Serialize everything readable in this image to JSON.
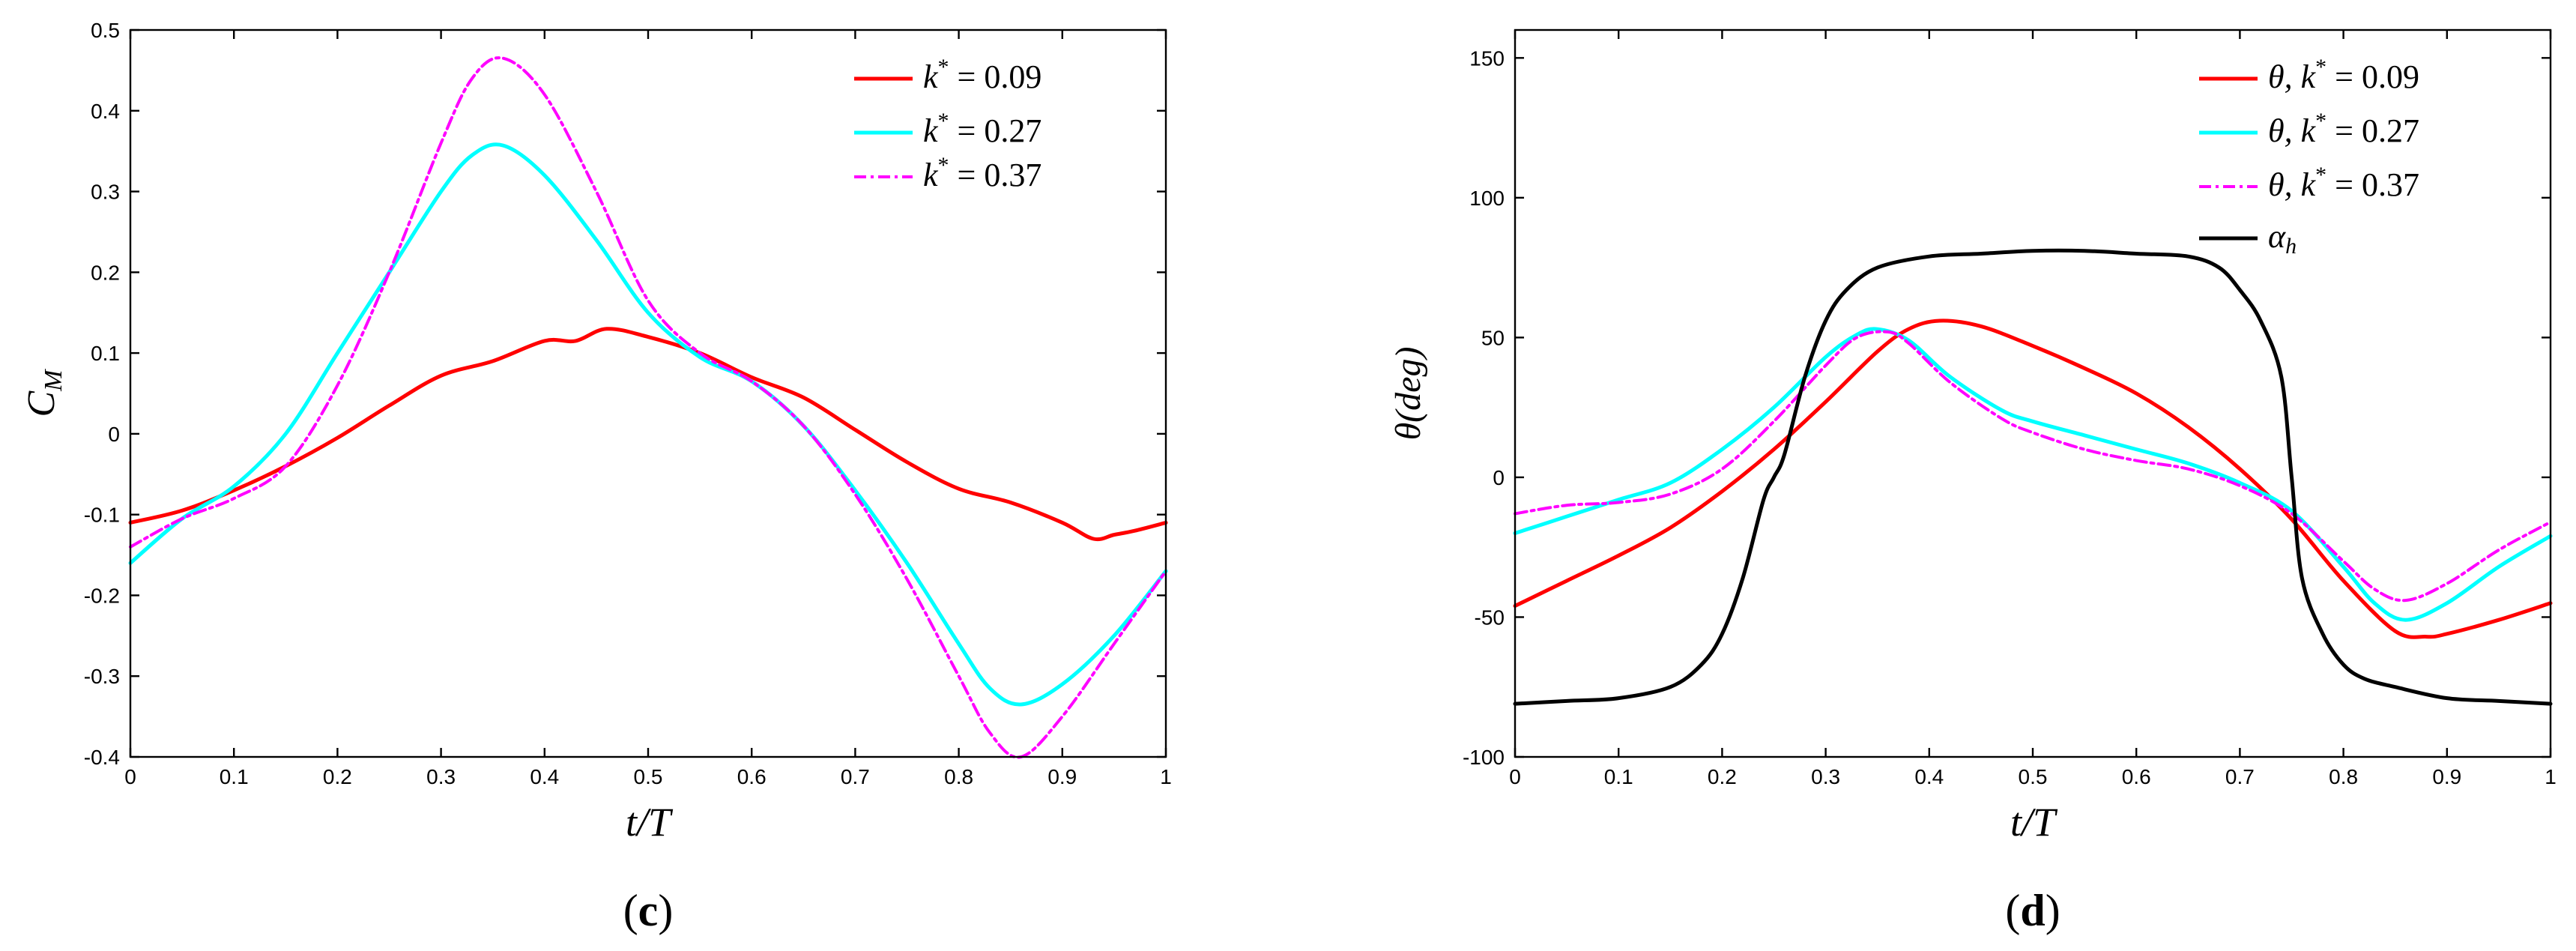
{
  "colors": {
    "red": "#ff0000",
    "cyan": "#00ffff",
    "magenta": "#ff00ff",
    "black": "#000000"
  },
  "chart_data": [
    {
      "type": "line",
      "panel": "c",
      "panel_label": {
        "open": "(",
        "letter": "c",
        "close": ")"
      },
      "xlabel": {
        "main": "t/T"
      },
      "ylabel": {
        "main": "C",
        "sub": "M"
      },
      "xlim": [
        0,
        1
      ],
      "ylim": [
        -0.4,
        0.5
      ],
      "xticks": [
        0,
        0.1,
        0.2,
        0.3,
        0.4,
        0.5,
        0.6,
        0.7,
        0.8,
        0.9,
        1
      ],
      "xtick_labels": [
        "0",
        "0.1",
        "0.2",
        "0.3",
        "0.4",
        "0.5",
        "0.6",
        "0.7",
        "0.8",
        "0.9",
        "1"
      ],
      "yticks": [
        -0.4,
        -0.3,
        -0.2,
        -0.1,
        0,
        0.1,
        0.2,
        0.3,
        0.4,
        0.5
      ],
      "ytick_labels": [
        "-0.4",
        "-0.3",
        "-0.2",
        "-0.1",
        "0",
        "0.1",
        "0.2",
        "0.3",
        "0.4",
        "0.5"
      ],
      "legend_position": "top-right",
      "series": [
        {
          "name": "k* = 0.09",
          "legend": {
            "base": "k",
            "sup": "*",
            "rest": " = 0.09"
          },
          "color": "#ff0000",
          "dash": "solid",
          "x": [
            0,
            0.05,
            0.1,
            0.15,
            0.2,
            0.25,
            0.3,
            0.35,
            0.4,
            0.43,
            0.46,
            0.5,
            0.55,
            0.6,
            0.65,
            0.7,
            0.75,
            0.8,
            0.85,
            0.9,
            0.93,
            0.95,
            0.97,
            1
          ],
          "y": [
            -0.11,
            -0.095,
            -0.07,
            -0.04,
            -0.005,
            0.035,
            0.072,
            0.09,
            0.115,
            0.115,
            0.13,
            0.12,
            0.1,
            0.07,
            0.045,
            0.005,
            -0.035,
            -0.068,
            -0.085,
            -0.11,
            -0.13,
            -0.125,
            -0.12,
            -0.11
          ]
        },
        {
          "name": "k* = 0.27",
          "legend": {
            "base": "k",
            "sup": "*",
            "rest": " = 0.27"
          },
          "color": "#00ffff",
          "dash": "solid",
          "x": [
            0,
            0.05,
            0.1,
            0.15,
            0.2,
            0.25,
            0.3,
            0.33,
            0.36,
            0.4,
            0.45,
            0.5,
            0.55,
            0.6,
            0.65,
            0.7,
            0.75,
            0.8,
            0.83,
            0.86,
            0.9,
            0.95,
            1
          ],
          "y": [
            -0.16,
            -0.105,
            -0.065,
            0.0,
            0.1,
            0.2,
            0.3,
            0.345,
            0.357,
            0.32,
            0.24,
            0.15,
            0.095,
            0.065,
            0.01,
            -0.07,
            -0.16,
            -0.26,
            -0.315,
            -0.335,
            -0.31,
            -0.25,
            -0.17
          ]
        },
        {
          "name": "k* = 0.37",
          "legend": {
            "base": "k",
            "sup": "*",
            "rest": " = 0.37"
          },
          "color": "#ff00ff",
          "dash": "dashdot",
          "x": [
            0,
            0.05,
            0.1,
            0.15,
            0.2,
            0.25,
            0.3,
            0.33,
            0.36,
            0.4,
            0.45,
            0.5,
            0.55,
            0.6,
            0.65,
            0.7,
            0.75,
            0.8,
            0.83,
            0.86,
            0.9,
            0.95,
            1
          ],
          "y": [
            -0.14,
            -0.105,
            -0.08,
            -0.04,
            0.06,
            0.2,
            0.36,
            0.44,
            0.465,
            0.42,
            0.3,
            0.165,
            0.1,
            0.065,
            0.01,
            -0.075,
            -0.18,
            -0.3,
            -0.37,
            -0.4,
            -0.35,
            -0.26,
            -0.17
          ]
        }
      ]
    },
    {
      "type": "line",
      "panel": "d",
      "panel_label": {
        "open": "(",
        "letter": "d",
        "close": ")"
      },
      "xlabel": {
        "main": "t/T"
      },
      "ylabel": {
        "main": "θ(deg)"
      },
      "xlim": [
        0,
        1
      ],
      "ylim": [
        -100,
        160
      ],
      "xticks": [
        0,
        0.1,
        0.2,
        0.3,
        0.4,
        0.5,
        0.6,
        0.7,
        0.8,
        0.9,
        1
      ],
      "xtick_labels": [
        "0",
        "0.1",
        "0.2",
        "0.3",
        "0.4",
        "0.5",
        "0.6",
        "0.7",
        "0.8",
        "0.9",
        "1"
      ],
      "yticks": [
        -100,
        -50,
        0,
        50,
        100,
        150
      ],
      "ytick_labels": [
        "-100",
        "-50",
        "0",
        "50",
        "100",
        "150"
      ],
      "legend_position": "top-right",
      "series": [
        {
          "name": "θ, k* = 0.09",
          "legend": {
            "base": "θ, k",
            "sup": "*",
            "rest": " = 0.09"
          },
          "color": "#ff0000",
          "dash": "solid",
          "x": [
            0,
            0.05,
            0.1,
            0.15,
            0.2,
            0.25,
            0.3,
            0.35,
            0.38,
            0.41,
            0.45,
            0.5,
            0.55,
            0.6,
            0.65,
            0.7,
            0.75,
            0.8,
            0.85,
            0.88,
            0.9,
            0.95,
            1
          ],
          "y": [
            -46,
            -37,
            -28,
            -18,
            -5,
            10,
            27,
            45,
            53,
            56,
            54,
            47,
            39,
            30,
            18,
            3,
            -15,
            -37,
            -55,
            -57,
            -56,
            -51,
            -45
          ]
        },
        {
          "name": "θ, k* = 0.27",
          "legend": {
            "base": "θ, k",
            "sup": "*",
            "rest": " = 0.27"
          },
          "color": "#00ffff",
          "dash": "solid",
          "x": [
            0,
            0.05,
            0.1,
            0.15,
            0.2,
            0.25,
            0.3,
            0.33,
            0.35,
            0.38,
            0.42,
            0.47,
            0.5,
            0.55,
            0.6,
            0.65,
            0.7,
            0.75,
            0.8,
            0.83,
            0.86,
            0.9,
            0.95,
            1
          ],
          "y": [
            -20,
            -14,
            -8,
            -2,
            10,
            25,
            43,
            51,
            53,
            49,
            36,
            24,
            20,
            15,
            10,
            5,
            -2,
            -12,
            -32,
            -45,
            -51,
            -45,
            -32,
            -21
          ]
        },
        {
          "name": "θ, k* = 0.37",
          "legend": {
            "base": "θ, k",
            "sup": "*",
            "rest": " = 0.37"
          },
          "color": "#ff00ff",
          "dash": "dashdot",
          "x": [
            0,
            0.05,
            0.1,
            0.15,
            0.2,
            0.25,
            0.3,
            0.33,
            0.36,
            0.38,
            0.42,
            0.47,
            0.5,
            0.55,
            0.6,
            0.65,
            0.7,
            0.75,
            0.8,
            0.83,
            0.86,
            0.9,
            0.95,
            1
          ],
          "y": [
            -13,
            -10,
            -9,
            -6,
            3,
            20,
            40,
            50,
            52,
            48,
            34,
            21,
            16,
            10,
            6,
            3,
            -3,
            -13,
            -30,
            -40,
            -44,
            -38,
            -26,
            -16
          ]
        },
        {
          "name": "α_h",
          "legend": {
            "base": "α",
            "sub": "h",
            "rest": ""
          },
          "color": "#000000",
          "dash": "solid",
          "x": [
            0,
            0.05,
            0.1,
            0.15,
            0.18,
            0.2,
            0.22,
            0.24,
            0.25,
            0.26,
            0.28,
            0.3,
            0.32,
            0.35,
            0.4,
            0.45,
            0.5,
            0.55,
            0.6,
            0.65,
            0.68,
            0.7,
            0.72,
            0.74,
            0.75,
            0.76,
            0.78,
            0.8,
            0.82,
            0.85,
            0.9,
            0.95,
            1
          ],
          "y": [
            -81,
            -80,
            -79,
            -75,
            -67,
            -56,
            -36,
            -8,
            0,
            8,
            36,
            56,
            67,
            75,
            79,
            80,
            81,
            81,
            80,
            79,
            75,
            67,
            56,
            36,
            0,
            -36,
            -56,
            -67,
            -72,
            -75,
            -79,
            -80,
            -81
          ]
        }
      ]
    }
  ]
}
